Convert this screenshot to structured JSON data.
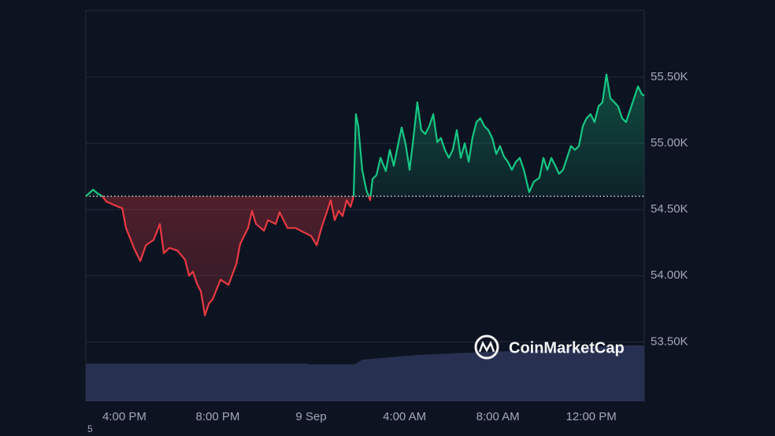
{
  "chart_data": {
    "type": "line",
    "x": [
      -9.65,
      -9.34,
      -9.14,
      -8.94,
      -8.77,
      -8.26,
      -8.09,
      -7.93,
      -7.59,
      -7.32,
      -7.08,
      -6.75,
      -6.48,
      -6.31,
      -6.07,
      -5.73,
      -5.4,
      -5.23,
      -5.06,
      -4.89,
      -4.72,
      -4.55,
      -4.38,
      -4.22,
      -3.88,
      -3.54,
      -3.2,
      -3.04,
      -2.7,
      -2.53,
      -2.36,
      -2.02,
      -1.85,
      -1.52,
      -1.35,
      -1.01,
      -0.67,
      -0.34,
      0,
      0.24,
      0.44,
      0.67,
      0.84,
      1.01,
      1.18,
      1.35,
      1.52,
      1.69,
      1.82,
      1.92,
      2.02,
      2.19,
      2.36,
      2.53,
      2.63,
      2.8,
      2.97,
      3.2,
      3.37,
      3.54,
      3.71,
      3.88,
      4.05,
      4.22,
      4.38,
      4.55,
      4.72,
      4.89,
      5.06,
      5.23,
      5.4,
      5.56,
      5.73,
      5.9,
      6.07,
      6.24,
      6.41,
      6.58,
      6.75,
      6.91,
      7.08,
      7.25,
      7.42,
      7.59,
      7.76,
      7.93,
      8.09,
      8.26,
      8.43,
      8.6,
      8.77,
      8.94,
      9.11,
      9.34,
      9.54,
      9.78,
      9.95,
      10.12,
      10.29,
      10.46,
      10.62,
      10.79,
      10.96,
      11.13,
      11.3,
      11.47,
      11.64,
      11.8,
      11.97,
      12.14,
      12.31,
      12.48,
      12.65,
      12.82,
      12.99,
      13.15,
      13.32,
      13.49,
      13.66,
      13.83,
      14.0,
      14.17,
      14.27
    ],
    "values": [
      54.6,
      54.65,
      54.62,
      54.6,
      54.56,
      54.52,
      54.51,
      54.36,
      54.21,
      54.11,
      54.23,
      54.27,
      54.39,
      54.17,
      54.21,
      54.19,
      54.12,
      54.0,
      54.03,
      53.94,
      53.88,
      53.7,
      53.79,
      53.82,
      53.97,
      53.93,
      54.09,
      54.24,
      54.36,
      54.49,
      54.39,
      54.34,
      54.42,
      54.39,
      54.48,
      54.36,
      54.36,
      54.33,
      54.3,
      54.23,
      54.36,
      54.48,
      54.57,
      54.42,
      54.49,
      54.45,
      54.57,
      54.52,
      54.6,
      55.22,
      55.13,
      54.8,
      54.65,
      54.57,
      54.73,
      54.76,
      54.89,
      54.79,
      54.95,
      54.83,
      54.98,
      55.12,
      54.99,
      54.8,
      55.04,
      55.31,
      55.1,
      55.07,
      55.13,
      55.22,
      55.01,
      55.04,
      54.95,
      54.89,
      54.95,
      55.1,
      54.89,
      55.0,
      54.86,
      55.04,
      55.16,
      55.19,
      55.13,
      55.1,
      55.04,
      54.92,
      54.98,
      54.9,
      54.86,
      54.8,
      54.86,
      54.89,
      54.8,
      54.63,
      54.71,
      54.74,
      54.89,
      54.8,
      54.89,
      54.83,
      54.77,
      54.8,
      54.89,
      54.98,
      54.95,
      54.98,
      55.13,
      55.19,
      55.22,
      55.16,
      55.28,
      55.31,
      55.52,
      55.34,
      55.31,
      55.28,
      55.19,
      55.16,
      55.25,
      55.34,
      55.43,
      55.37,
      55.36
    ],
    "baseline": 54.6,
    "up_color": "#16c784",
    "down_color": "#ea3943",
    "xlim": [
      -9.65,
      14.27
    ],
    "xticks": [
      {
        "value": -8,
        "label": "4:00 PM"
      },
      {
        "value": -4,
        "label": "8:00 PM"
      },
      {
        "value": 0,
        "label": "9 Sep"
      },
      {
        "value": 4,
        "label": "4:00 AM"
      },
      {
        "value": 8,
        "label": "8:00 AM"
      },
      {
        "value": 12,
        "label": "12:00 PM"
      }
    ],
    "ylim": [
      53.05,
      56.0
    ],
    "yticks": [
      {
        "value": 53.5,
        "label": "53.50K"
      },
      {
        "value": 54.0,
        "label": "54.00K"
      },
      {
        "value": 54.5,
        "label": "54.50K"
      },
      {
        "value": 55.0,
        "label": "55.00K"
      },
      {
        "value": 55.5,
        "label": "55.50K"
      }
    ],
    "grid": true,
    "watermark": "CoinMarketCap",
    "footnote": "5"
  }
}
